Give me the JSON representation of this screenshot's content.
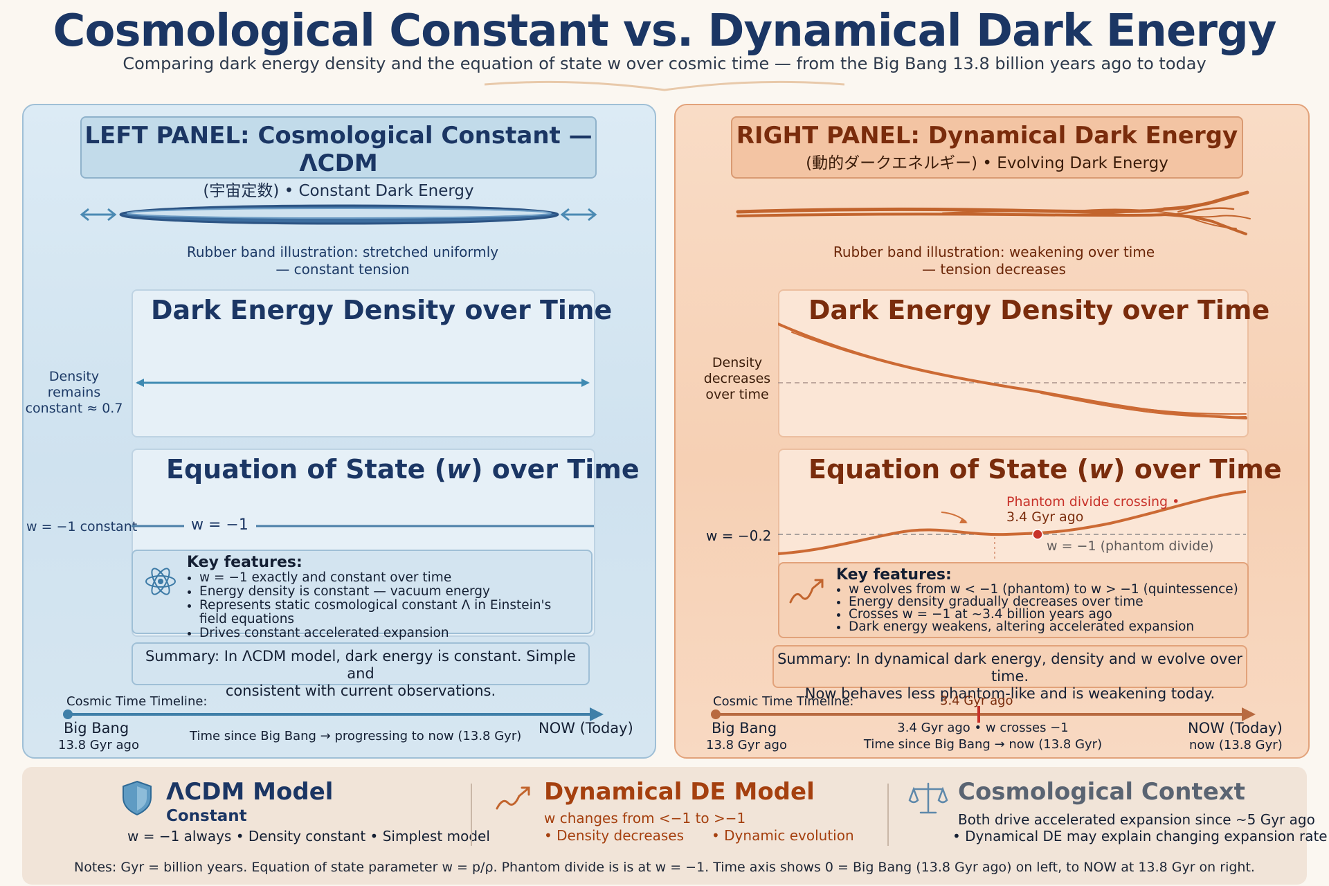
{
  "header": {
    "title": "Cosmological Constant vs. Dynamical Dark Energy",
    "subtitle": "Comparing dark energy density and the equation of state w over cosmic time — from the Big Bang 13.8 billion years ago to today"
  },
  "left": {
    "heading_prefix": "LEFT PANEL: ",
    "heading_title": "Cosmological Constant — ΛCDM",
    "heading_sub": "(宇宙定数) • Constant Dark Energy",
    "band_caption_1": "Rubber band illustration: stretched uniformly",
    "band_caption_2": "— constant tension",
    "density_title": "Dark Energy Density over Time",
    "density_side_1": "Density remains",
    "density_side_2": "constant ≈ 0.7",
    "eos_title_a": "Equation of State (",
    "eos_title_w": "w",
    "eos_title_b": ") over Time",
    "eos_side": "w = −1 constant",
    "eos_inline": "w = −1",
    "features_title": "Key features:",
    "features": [
      "w = −1 exactly and constant over time",
      "Energy density is constant — vacuum energy",
      "Represents static cosmological constant Λ in Einstein's field equations",
      "Drives constant accelerated expansion"
    ],
    "summary_1": "Summary: In ΛCDM model, dark energy is constant. Simple and",
    "summary_2": "consistent with current observations.",
    "timeline_title": "Cosmic Time Timeline:",
    "timeline_start": "Big Bang",
    "timeline_start_sub": "13.8 Gyr ago",
    "timeline_mid": "Time since Big Bang → progressing to now (13.8 Gyr)",
    "timeline_end": "NOW (Today)"
  },
  "right": {
    "heading_prefix": "RIGHT PANEL: ",
    "heading_title": "Dynamical Dark Energy",
    "heading_sub": "(動的ダークエネルギー) • Evolving Dark Energy",
    "band_caption_1": "Rubber band illustration: weakening over time",
    "band_caption_2": "— tension decreases",
    "density_title": "Dark Energy Density over Time",
    "density_side_1": "Density",
    "density_side_2": "decreases",
    "density_side_3": "over time",
    "eos_title_a": "Equation of State (",
    "eos_title_w": "w",
    "eos_title_b": ") over Time",
    "eos_side": "w = −0.2",
    "phantom_1": "Phantom divide crossing •",
    "phantom_2": "3.4 Gyr ago",
    "phantom_line": "w = −1 (phantom divide)",
    "features_title": "Key features:",
    "features": [
      "w evolves from w < −1 (phantom) to w > −1 (quintessence)",
      "Energy density gradually decreases over time",
      "Crosses w = −1 at ~3.4 billion years ago",
      "Dark energy weakens, altering accelerated expansion"
    ],
    "summary_1": "Summary: In dynamical dark energy, density and w evolve over time.",
    "summary_2": "Now behaves less phantom-like and is weakening today.",
    "timeline_title": "Cosmic Time Timeline:",
    "timeline_marker": "3.4 Gyr ago",
    "timeline_start": "Big Bang",
    "timeline_start_sub": "13.8 Gyr ago",
    "timeline_mid_1": "3.4 Gyr ago • w crosses −1",
    "timeline_mid_2": "Time since Big Bang → now (13.8 Gyr)",
    "timeline_end": "NOW (Today)",
    "timeline_end_sub": "now (13.8 Gyr)"
  },
  "footer": {
    "lcdm_title": "ΛCDM Model",
    "lcdm_sub": "Constant",
    "lcdm_text": "w = −1 always • Density constant • Simplest model",
    "dyn_title": "Dynamical DE Model",
    "dyn_text": "w changes from <−1 to >−1",
    "dyn_b1": "• Density decreases",
    "dyn_b2": "• Dynamic evolution",
    "ctx_title": "Cosmological Context",
    "ctx_1": "Both drive accelerated expansion since ~5 Gyr ago",
    "ctx_2": "• Dynamical  DE may explain changing expansion rate",
    "notes": "Notes: Gyr = billion years. Equation of state parameter w = p/ρ. Phantom divide is is at w = −1. Time axis shows 0 = Big Bang (13.8 Gyr ago) on left, to NOW at 13.8 Gyr on right."
  },
  "colors": {
    "navy": "#1b3664",
    "left_accent": "#3f7fa8",
    "right_accent": "#d0713a",
    "right_text": "#7a2c0c",
    "phantom_red": "#c8322a"
  },
  "icons": [
    "atom-icon",
    "trend-up-icon",
    "shield-icon",
    "scales-icon"
  ]
}
